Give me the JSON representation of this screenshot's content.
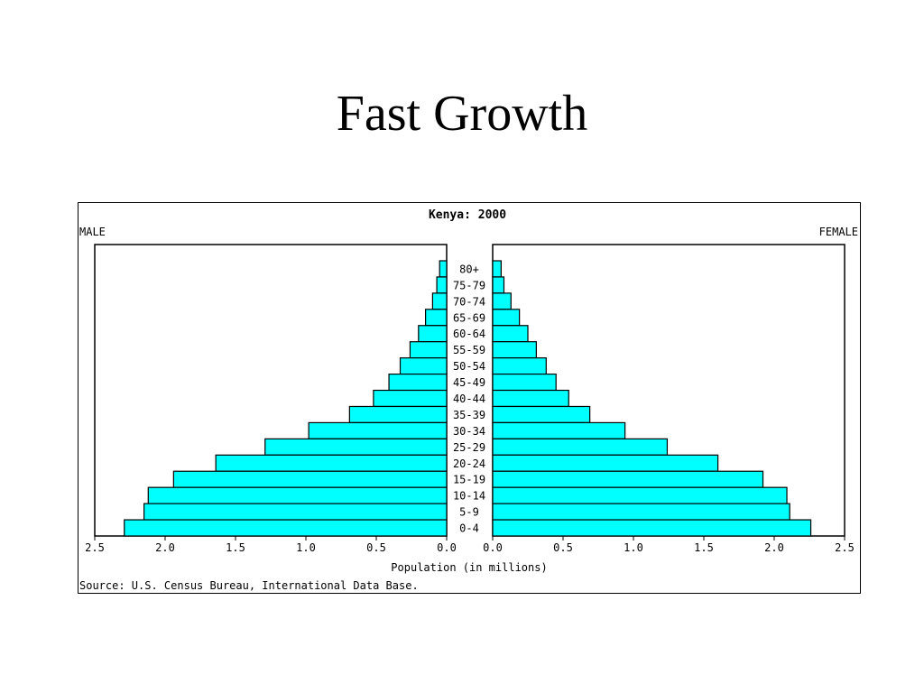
{
  "slide": {
    "title": "Fast Growth"
  },
  "chart_data": {
    "type": "bar",
    "subtype": "population-pyramid",
    "title": "Kenya: 2000",
    "left_label": "MALE",
    "right_label": "FEMALE",
    "xlabel": "Population (in millions)",
    "source": "Source: U.S. Census Bureau, International Data Base.",
    "xlim": [
      0,
      2.5
    ],
    "x_ticks": [
      "0.0",
      "0.5",
      "1.0",
      "1.5",
      "2.0",
      "2.5"
    ],
    "grid": false,
    "bar_color": "#00ffff",
    "categories": [
      "80+",
      "75-79",
      "70-74",
      "65-69",
      "60-64",
      "55-59",
      "50-54",
      "45-49",
      "40-44",
      "35-39",
      "30-34",
      "25-29",
      "20-24",
      "15-19",
      "10-14",
      "5-9",
      "0-4"
    ],
    "series": [
      {
        "name": "MALE",
        "values": [
          0.05,
          0.07,
          0.1,
          0.15,
          0.2,
          0.26,
          0.33,
          0.41,
          0.52,
          0.69,
          0.98,
          1.29,
          1.64,
          1.94,
          2.12,
          2.15,
          2.29
        ]
      },
      {
        "name": "FEMALE",
        "values": [
          0.06,
          0.08,
          0.13,
          0.19,
          0.25,
          0.31,
          0.38,
          0.45,
          0.54,
          0.69,
          0.94,
          1.24,
          1.6,
          1.92,
          2.09,
          2.11,
          2.26
        ]
      }
    ]
  }
}
